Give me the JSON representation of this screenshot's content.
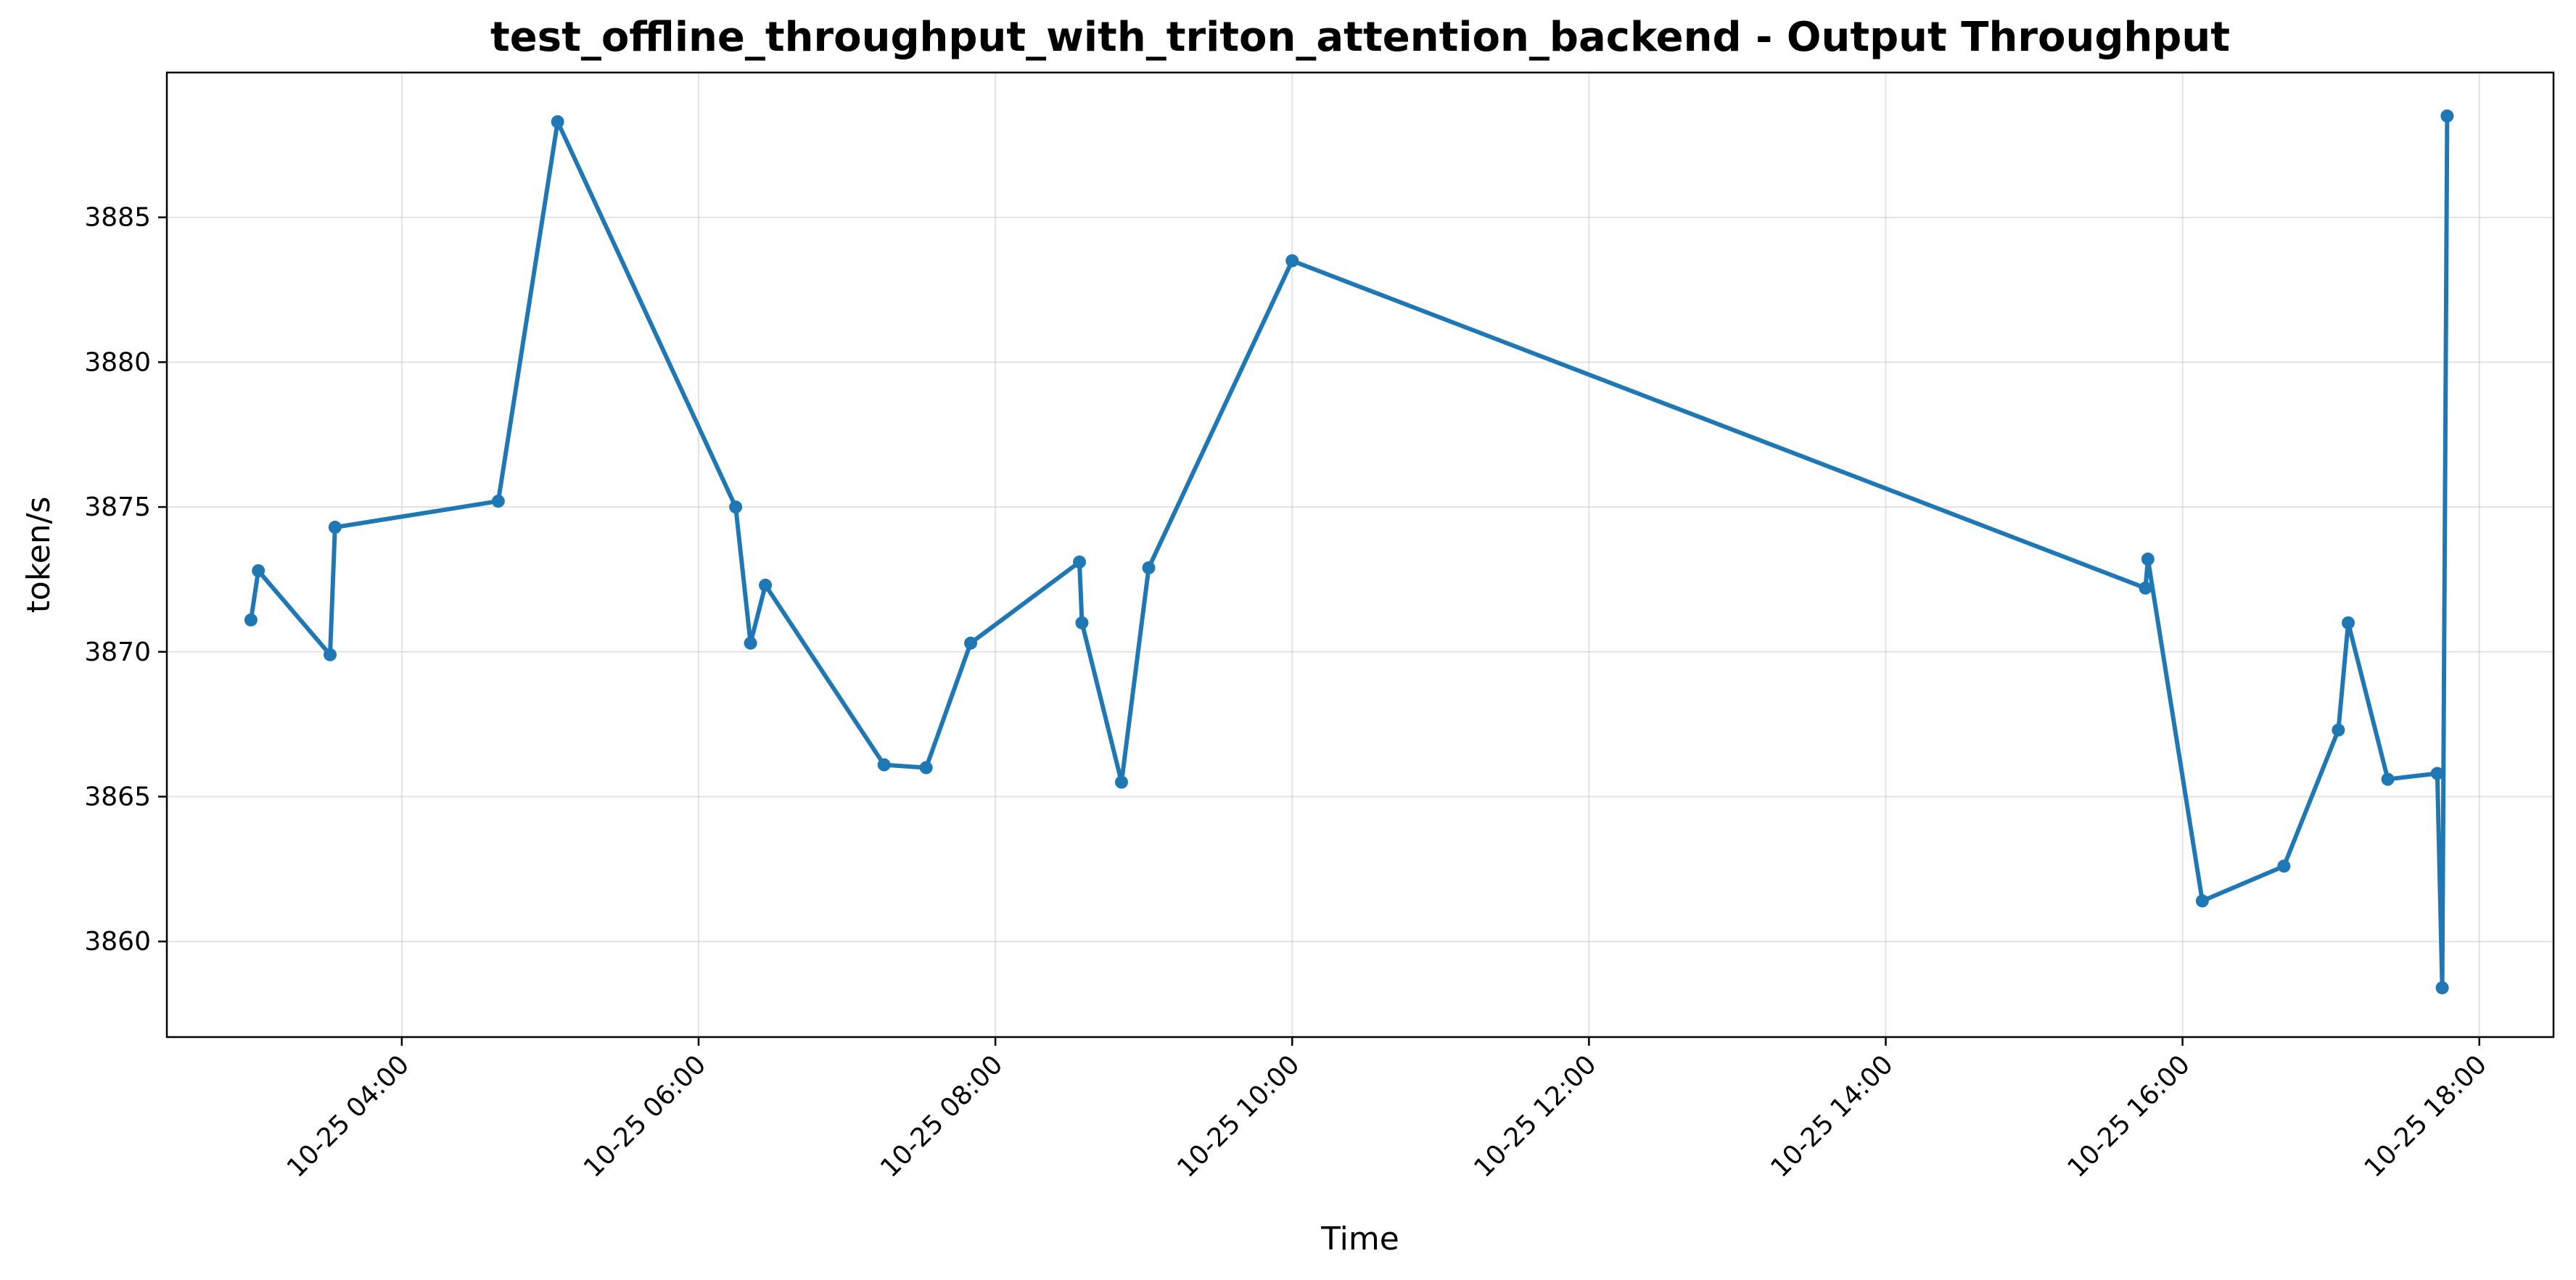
{
  "chart_data": {
    "type": "line",
    "title": "test_offline_throughput_with_triton_attention_backend - Output Throughput",
    "xlabel": "Time",
    "ylabel": "token/s",
    "grid": true,
    "color": "#1f77b4",
    "xlim": [
      "2025-10-25T02:25",
      "2025-10-25T18:30"
    ],
    "ylim": [
      3856.7,
      3890.0
    ],
    "yticks": [
      3860,
      3865,
      3870,
      3875,
      3880,
      3885
    ],
    "xticks": [
      {
        "t": "2025-10-25T04:00",
        "label": "10-25 04:00"
      },
      {
        "t": "2025-10-25T06:00",
        "label": "10-25 06:00"
      },
      {
        "t": "2025-10-25T08:00",
        "label": "10-25 08:00"
      },
      {
        "t": "2025-10-25T10:00",
        "label": "10-25 10:00"
      },
      {
        "t": "2025-10-25T12:00",
        "label": "10-25 12:00"
      },
      {
        "t": "2025-10-25T14:00",
        "label": "10-25 14:00"
      },
      {
        "t": "2025-10-25T16:00",
        "label": "10-25 16:00"
      },
      {
        "t": "2025-10-25T18:00",
        "label": "10-25 18:00"
      }
    ],
    "series": [
      {
        "x": [
          "2025-10-25T02:59",
          "2025-10-25T03:02",
          "2025-10-25T03:31",
          "2025-10-25T03:33",
          "2025-10-25T04:39",
          "2025-10-25T05:03",
          "2025-10-25T06:15",
          "2025-10-25T06:21",
          "2025-10-25T06:27",
          "2025-10-25T07:15",
          "2025-10-25T07:32",
          "2025-10-25T07:50",
          "2025-10-25T08:34",
          "2025-10-25T08:35",
          "2025-10-25T08:51",
          "2025-10-25T09:02",
          "2025-10-25T10:00",
          "2025-10-25T15:45",
          "2025-10-25T15:46",
          "2025-10-25T16:08",
          "2025-10-25T16:41",
          "2025-10-25T17:03",
          "2025-10-25T17:07",
          "2025-10-25T17:23",
          "2025-10-25T17:43",
          "2025-10-25T17:45",
          "2025-10-25T17:47"
        ],
        "y": [
          3871.1,
          3872.8,
          3869.9,
          3874.3,
          3875.2,
          3888.3,
          3875.0,
          3870.3,
          3872.3,
          3866.1,
          3866.0,
          3870.3,
          3873.1,
          3871.0,
          3865.5,
          3872.9,
          3883.5,
          3872.2,
          3873.2,
          3861.4,
          3862.6,
          3867.3,
          3871.0,
          3865.6,
          3865.8,
          3858.4,
          3888.5
        ]
      }
    ]
  }
}
